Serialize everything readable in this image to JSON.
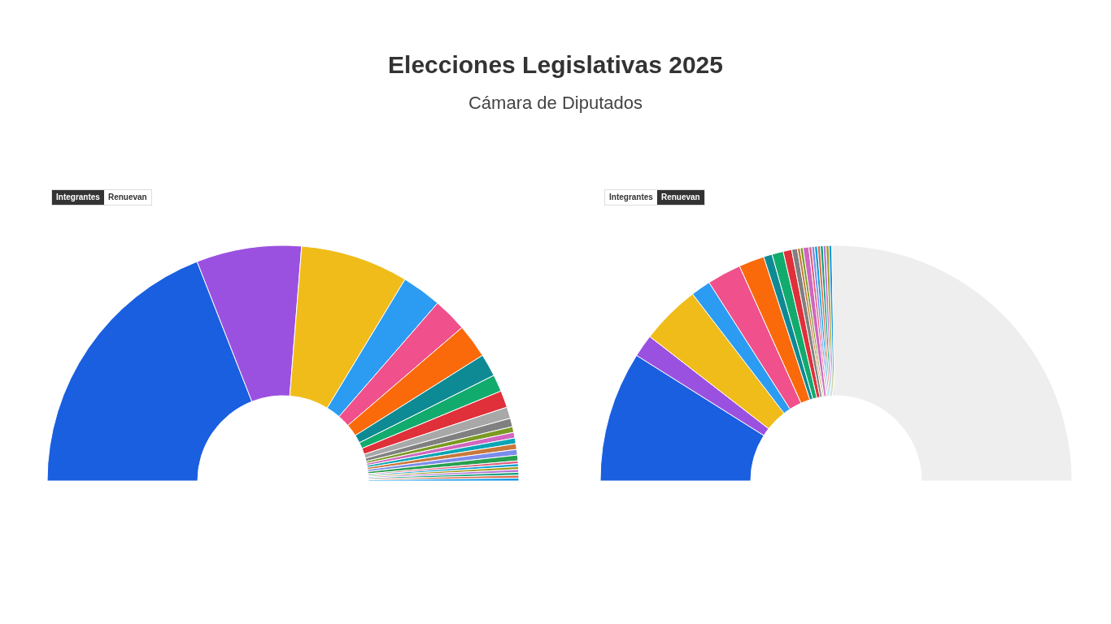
{
  "chart_data": [
    {
      "type": "donut",
      "title": "Elecciones Legislativas 2025",
      "subtitle": "Cámara de Diputados",
      "annotations": [
        "Integrantes",
        "Renuevan"
      ],
      "categories": [
        null,
        null,
        null,
        null,
        null,
        null,
        null,
        null,
        null,
        null,
        null,
        null,
        null,
        null,
        null,
        null,
        null,
        null,
        null,
        null,
        null,
        null,
        null,
        null
      ],
      "values": [
        38.13,
        14.4,
        14.79,
        5.45,
        4.67,
        4.67,
        3.11,
        2.33,
        2.33,
        1.56,
        1.17,
        0.78,
        0.78,
        0.78,
        0.78,
        0.78,
        0.78,
        0.39,
        0.39,
        0.39,
        0.39,
        0.39,
        0.39,
        0.39
      ],
      "colors": [
        "#1a5fe0",
        "#9b51e0",
        "#f0bc1a",
        "#2b9cf2",
        "#f0508c",
        "#fa6a0a",
        "#0e8a94",
        "#12ab6e",
        "#e0303a",
        "#a8a8a8",
        "#808080",
        "#7a9a22",
        "#d066c0",
        "#0aa5b5",
        "#c8783a",
        "#7b8cec",
        "#27a050",
        "#e0607e",
        "#0aa0d8",
        "#a09a1a",
        "#b878d8",
        "#10a080",
        "#d8704e",
        "#1598e8"
      ]
    },
    {
      "type": "donut",
      "annotations": [
        "Integrantes",
        "Renuevan"
      ],
      "categories": [
        null,
        null,
        null,
        null,
        null,
        null,
        null,
        null,
        null,
        null,
        null,
        null,
        null,
        null,
        null,
        null,
        null,
        null,
        null,
        null,
        null,
        null
      ],
      "values": [
        17.9,
        3.11,
        8.17,
        2.72,
        4.67,
        3.5,
        1.17,
        1.56,
        1.17,
        0.78,
        0.39,
        0.39,
        0.78,
        0.39,
        0.39,
        0.39,
        0.39,
        0.39,
        0.39,
        0.39,
        0.39,
        50.58
      ],
      "colors": [
        "#1a5fe0",
        "#9b51e0",
        "#f0bc1a",
        "#2b9cf2",
        "#f0508c",
        "#fa6a0a",
        "#0e8a94",
        "#12ab6e",
        "#e0303a",
        "#808080",
        "#c8783a",
        "#7a9a22",
        "#d066c0",
        "#e0607e",
        "#7b8cec",
        "#0aa0d8",
        "#d8704e",
        "#10a080",
        "#b878d8",
        "#a09a1a",
        "#1598e8",
        "#eeeeee"
      ]
    }
  ]
}
